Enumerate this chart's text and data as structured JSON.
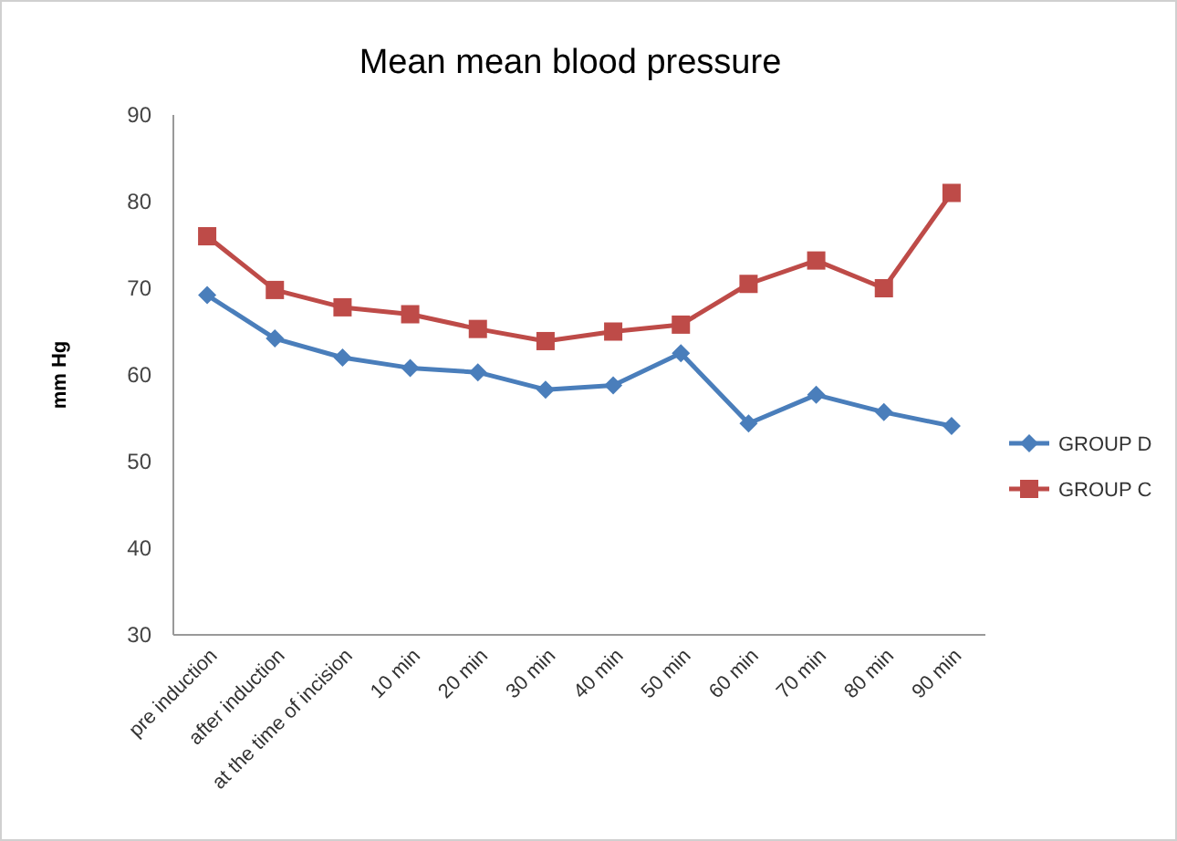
{
  "chart_data": {
    "type": "line",
    "title": "Mean mean blood pressure",
    "ylabel": "mm Hg",
    "categories": [
      "pre induction",
      "after induction",
      "at the time of incision",
      "10 min",
      "20 min",
      "30 min",
      "40 min",
      "50 min",
      "60 min",
      "70 min",
      "80 min",
      "90 min"
    ],
    "series": [
      {
        "name": "GROUP D",
        "color": "#4a7ebb",
        "marker": "diamond",
        "values": [
          69.2,
          64.2,
          62,
          60.8,
          60.3,
          58.3,
          58.8,
          62.5,
          54.4,
          57.7,
          55.7,
          54.1
        ]
      },
      {
        "name": "GROUP C",
        "color": "#be4b48",
        "marker": "square",
        "values": [
          76,
          69.8,
          67.8,
          67,
          65.3,
          63.9,
          65,
          65.8,
          70.5,
          73.2,
          70,
          81
        ]
      }
    ],
    "ylim": [
      30,
      90
    ],
    "yticks": [
      30,
      40,
      50,
      60,
      70,
      80,
      90
    ],
    "grid": false,
    "legend": "right"
  }
}
